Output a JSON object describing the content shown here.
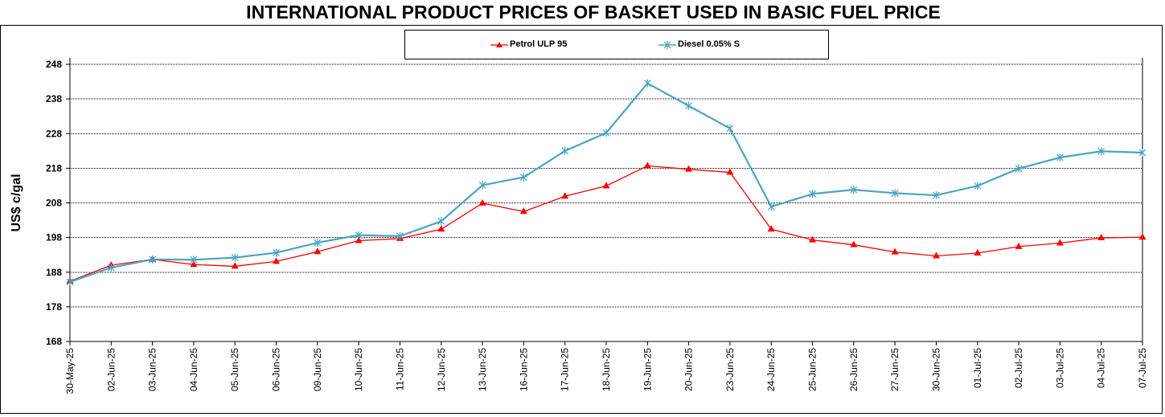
{
  "chart_data": {
    "type": "line",
    "title": "INTERNATIONAL PRODUCT PRICES OF BASKET USED IN BASIC FUEL PRICE",
    "xlabel": "",
    "ylabel": "US$ c/gal",
    "ylim": [
      168,
      248
    ],
    "yticks": [
      168,
      178,
      188,
      198,
      208,
      218,
      228,
      238,
      248
    ],
    "grid": true,
    "legend_position": "top",
    "categories": [
      "30-May-25",
      "02-Jun-25",
      "03-Jun-25",
      "04-Jun-25",
      "05-Jun-25",
      "06-Jun-25",
      "09-Jun-25",
      "10-Jun-25",
      "11-Jun-25",
      "12-Jun-25",
      "13-Jun-25",
      "16-Jun-25",
      "17-Jun-25",
      "18-Jun-25",
      "19-Jun-25",
      "20-Jun-25",
      "23-Jun-25",
      "24-Jun-25",
      "25-Jun-25",
      "26-Jun-25",
      "27-Jun-25",
      "30-Jun-25",
      "01-Jul-25",
      "02-Jul-25",
      "03-Jul-25",
      "04-Jul-25",
      "07-Jul-25"
    ],
    "series": [
      {
        "name": "Petrol ULP 95",
        "color": "#ff0000",
        "marker": "triangle",
        "values": [
          185.4,
          190.0,
          191.7,
          190.2,
          189.7,
          191.1,
          193.9,
          197.1,
          197.7,
          200.4,
          207.9,
          205.5,
          209.9,
          212.9,
          218.7,
          217.7,
          216.8,
          200.4,
          197.3,
          195.9,
          193.8,
          192.7,
          193.5,
          195.4,
          196.4,
          197.9,
          198.1
        ]
      },
      {
        "name": "Diesel 0.05% S",
        "color": "#4aa5c2",
        "marker": "asterisk",
        "values": [
          185.2,
          189.3,
          191.7,
          191.6,
          192.2,
          193.6,
          196.5,
          198.7,
          198.4,
          202.7,
          213.1,
          215.4,
          223.0,
          228.2,
          242.5,
          236.0,
          229.5,
          206.9,
          210.6,
          211.8,
          210.8,
          210.2,
          212.9,
          217.9,
          221.1,
          222.9,
          222.5
        ]
      }
    ]
  }
}
